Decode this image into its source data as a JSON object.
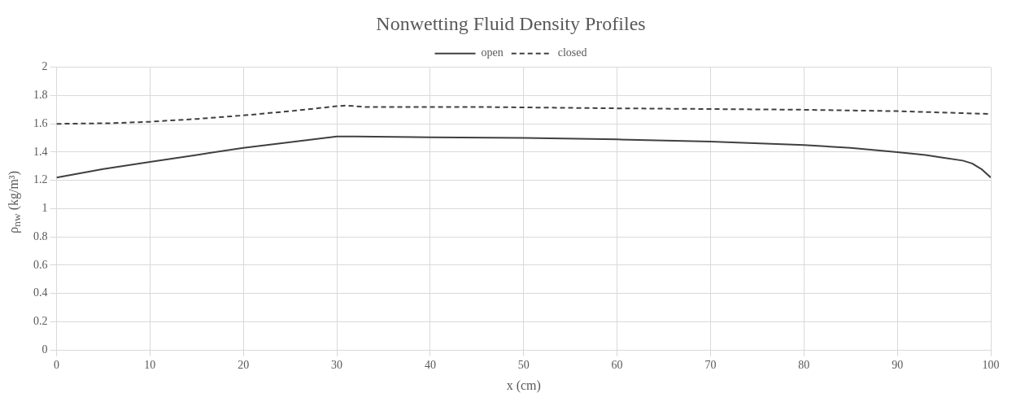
{
  "chart_data": {
    "type": "line",
    "title": "Nonwetting Fluid Density Profiles",
    "xlabel": "x (cm)",
    "ylabel": "ρ$_{nw}$ (kg/m³)",
    "xlim": [
      0,
      100
    ],
    "xticks": [
      0,
      10,
      20,
      30,
      40,
      50,
      60,
      70,
      80,
      90,
      100
    ],
    "ylim": [
      0,
      2
    ],
    "yticks": [
      0,
      0.2,
      0.4,
      0.6,
      0.8,
      1,
      1.2,
      1.4,
      1.6,
      1.8,
      2
    ],
    "grid": true,
    "legend": "top",
    "marker": "none",
    "series": [
      {
        "name": "open",
        "color": "#404040",
        "line_style": "solid",
        "x": [
          0,
          5,
          10,
          15,
          20,
          25,
          30,
          32,
          40,
          50,
          60,
          70,
          80,
          85,
          90,
          93,
          95,
          97,
          98,
          99,
          100
        ],
        "values": [
          1.22,
          1.28,
          1.33,
          1.38,
          1.43,
          1.47,
          1.51,
          1.51,
          1.505,
          1.5,
          1.49,
          1.475,
          1.45,
          1.43,
          1.4,
          1.38,
          1.36,
          1.34,
          1.32,
          1.28,
          1.22
        ]
      },
      {
        "name": "closed",
        "color": "#404040",
        "line_style": "dashed",
        "x": [
          0,
          6,
          10,
          15,
          20,
          25,
          30,
          31,
          33,
          45,
          60,
          70,
          80,
          90,
          100
        ],
        "values": [
          1.6,
          1.605,
          1.615,
          1.635,
          1.66,
          1.69,
          1.725,
          1.73,
          1.72,
          1.72,
          1.71,
          1.705,
          1.7,
          1.69,
          1.67
        ]
      }
    ]
  }
}
